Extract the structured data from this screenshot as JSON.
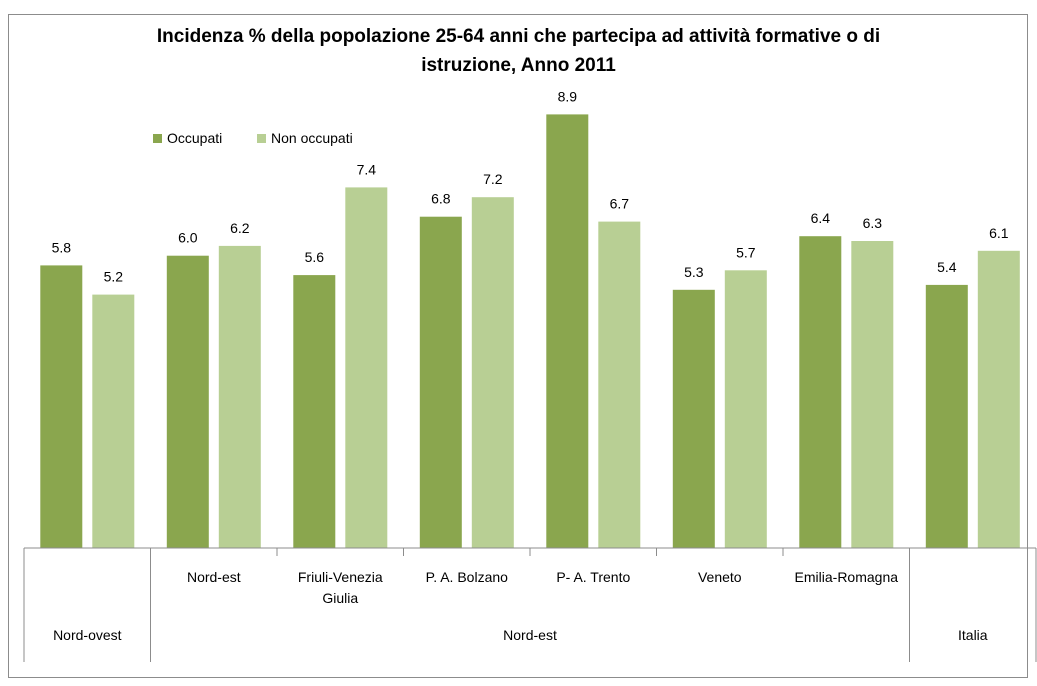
{
  "chart_data": {
    "type": "bar",
    "title_line1": "Incidenza % della popolazione 25-64 anni che partecipa ad attività formative o di",
    "title_line2": "istruzione, Anno 2011",
    "xlabel": "",
    "ylabel": "",
    "ylim": [
      0,
      9.4
    ],
    "grid": false,
    "legend_position": "top-left",
    "categories": [
      "",
      "Nord-est",
      "Friuli-Venezia Giulia",
      "P. A. Bolzano",
      "P- A. Trento",
      "Veneto",
      "Emilia-Romagna",
      ""
    ],
    "category_lines": [
      [
        ""
      ],
      [
        "Nord-est"
      ],
      [
        "Friuli-Venezia",
        "Giulia"
      ],
      [
        "P. A. Bolzano"
      ],
      [
        "P- A. Trento"
      ],
      [
        "Veneto"
      ],
      [
        "Emilia-Romagna"
      ],
      [
        ""
      ]
    ],
    "groups": [
      {
        "label": "Nord-ovest",
        "categories": [
          0
        ]
      },
      {
        "label": "Nord-est",
        "categories": [
          1,
          2,
          3,
          4,
          5,
          6
        ]
      },
      {
        "label": "Italia",
        "categories": [
          7
        ]
      }
    ],
    "series": [
      {
        "name": "Occupati",
        "color": "#8aa64e",
        "values": [
          5.8,
          6.0,
          5.6,
          6.8,
          8.9,
          5.3,
          6.4,
          5.4
        ]
      },
      {
        "name": "Non occupati",
        "color": "#b8cf94",
        "values": [
          5.2,
          6.2,
          7.4,
          7.2,
          6.7,
          5.7,
          6.3,
          6.1
        ]
      }
    ]
  }
}
